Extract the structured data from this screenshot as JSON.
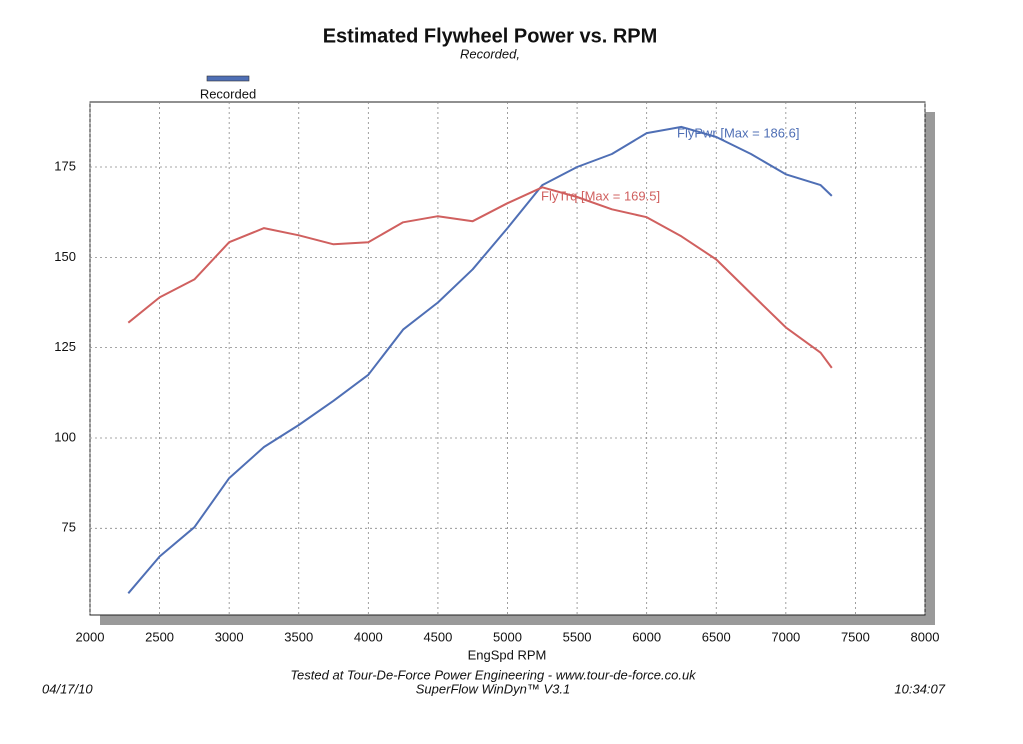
{
  "chart_data": {
    "type": "line",
    "title": "Estimated Flywheel Power vs. RPM",
    "subtitle": "Recorded,",
    "legend": {
      "label": "Recorded",
      "color": "#4f6fb5"
    },
    "x_label": "EngSpd RPM",
    "x": [
      2275,
      2500,
      2750,
      3000,
      3250,
      3500,
      3750,
      4000,
      4250,
      4500,
      4750,
      5000,
      5250,
      5500,
      5750,
      6000,
      6250,
      6500,
      6750,
      7000,
      7250,
      7330
    ],
    "series": [
      {
        "color": "#4f6fb5",
        "values": [
          57.0,
          67.2,
          75.3,
          88.9,
          97.5,
          103.6,
          110.3,
          117.5,
          130.0,
          137.5,
          146.7,
          158.1,
          170.0,
          175.0,
          178.6,
          184.4,
          186.1,
          183.3,
          178.6,
          173.0,
          170.0,
          167.0
        ]
      },
      {
        "color": "#d0605f",
        "values": [
          131.9,
          138.9,
          143.9,
          154.2,
          158.1,
          156.1,
          153.6,
          154.2,
          159.7,
          161.4,
          160.0,
          165.0,
          169.4,
          166.7,
          163.3,
          161.1,
          155.8,
          149.4,
          140.0,
          130.6,
          123.6,
          119.4
        ]
      }
    ],
    "annotations": [
      "FlyPwr [Max = 186.6]",
      "FlyTrq [Max = 169.5]"
    ],
    "xlim": [
      2000,
      8000
    ],
    "xticks": [
      2000,
      2500,
      3000,
      3500,
      4000,
      4500,
      5000,
      5500,
      6000,
      6500,
      7000,
      7500,
      8000
    ],
    "ylim": [
      51,
      193
    ],
    "yticks": [
      75,
      100,
      125,
      150,
      175
    ],
    "grid": true,
    "footer": [
      "Tested at Tour-De-Force Power Engineering - www.tour-de-force.co.uk",
      "SuperFlow WinDyn™ V3.1"
    ],
    "date": "04/17/10",
    "time": "10:34:07"
  }
}
